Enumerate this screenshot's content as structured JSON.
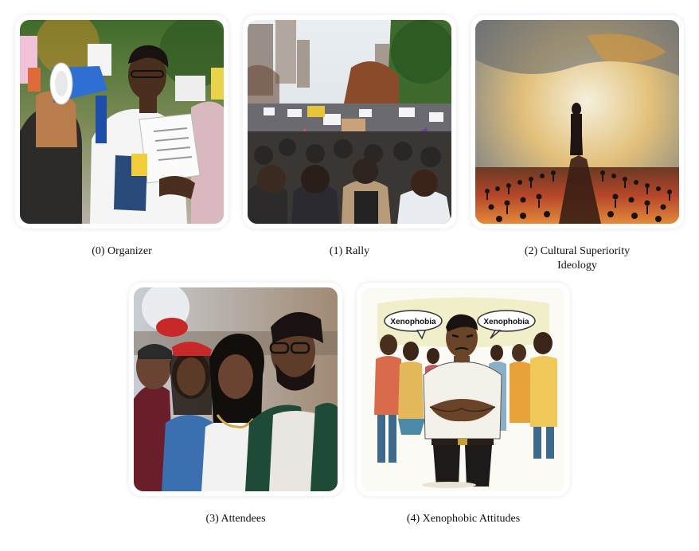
{
  "panels": [
    {
      "caption": "(0) Organizer"
    },
    {
      "caption": "(1) Rally"
    },
    {
      "caption_line1": "(2) Cultural Superiority",
      "caption_line2": "Ideology"
    },
    {
      "caption": "(3) Attendees"
    },
    {
      "caption": "(4) Xenophobic Attitudes",
      "bubble_left": "Xenophobia",
      "bubble_right": "Xenophobia"
    }
  ]
}
